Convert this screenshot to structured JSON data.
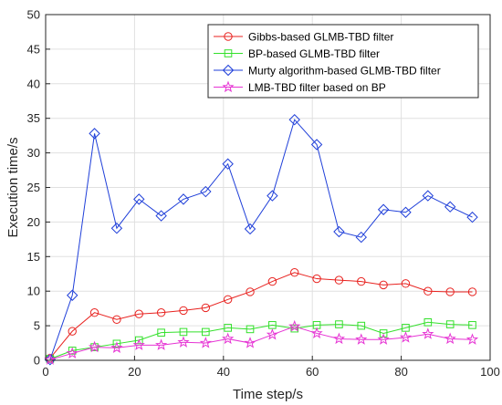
{
  "chart_data": {
    "type": "line",
    "title": "",
    "xlabel": "Time step/s",
    "ylabel": "Execution time/s",
    "xlim": [
      0,
      100
    ],
    "ylim": [
      0,
      50
    ],
    "xticks": [
      0,
      20,
      40,
      60,
      80,
      100
    ],
    "yticks": [
      0,
      5,
      10,
      15,
      20,
      25,
      30,
      35,
      40,
      45,
      50
    ],
    "grid": true,
    "legend_position": "top-right",
    "x": [
      1,
      6,
      11,
      16,
      21,
      26,
      31,
      36,
      41,
      46,
      51,
      56,
      61,
      66,
      71,
      76,
      81,
      86,
      91,
      96
    ],
    "series": [
      {
        "name": "Gibbs-based GLMB-TBD filter",
        "color": "#e8221f",
        "marker": "circle",
        "values": [
          0.3,
          4.2,
          6.9,
          5.9,
          6.7,
          6.9,
          7.2,
          7.6,
          8.8,
          9.9,
          11.4,
          12.7,
          11.8,
          11.6,
          11.4,
          10.9,
          11.1,
          10.0,
          9.9,
          9.9
        ]
      },
      {
        "name": "BP-based GLMB-TBD filter",
        "color": "#33e02b",
        "marker": "square",
        "values": [
          0.2,
          1.4,
          1.9,
          2.4,
          2.9,
          4.0,
          4.1,
          4.1,
          4.7,
          4.5,
          5.1,
          4.6,
          5.1,
          5.2,
          5.0,
          3.9,
          4.7,
          5.5,
          5.2,
          5.1
        ]
      },
      {
        "name": "Murty algorithm-based GLMB-TBD filter",
        "color": "#1f3fd9",
        "marker": "diamond",
        "values": [
          0.1,
          9.4,
          32.8,
          19.1,
          23.3,
          20.9,
          23.3,
          24.4,
          28.4,
          19.0,
          23.8,
          34.8,
          31.2,
          18.6,
          17.8,
          21.8,
          21.4,
          23.8,
          22.2,
          20.7
        ]
      },
      {
        "name": "LMB-TBD filter based on BP",
        "color": "#e634d4",
        "marker": "star",
        "values": [
          0.1,
          1.0,
          1.9,
          1.8,
          2.2,
          2.2,
          2.6,
          2.5,
          3.1,
          2.5,
          3.7,
          4.9,
          3.9,
          3.1,
          3.0,
          3.0,
          3.3,
          3.8,
          3.1,
          3.0
        ]
      }
    ]
  }
}
